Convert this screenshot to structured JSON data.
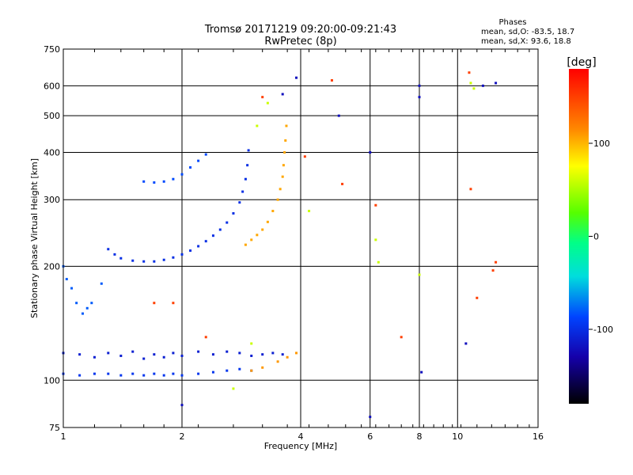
{
  "chart_data": {
    "type": "scatter",
    "title": "Tromsø 20171219 09:20:00-09:21:43",
    "subtitle": "RwPretec (8p)",
    "xlabel": "Frequency [MHz]",
    "ylabel": "Stationary phase Virtual Height [km]",
    "x_scale": "log",
    "y_scale": "log",
    "xlim": [
      1,
      16
    ],
    "ylim": [
      75,
      750
    ],
    "x_ticks": [
      1,
      2,
      4,
      6,
      8,
      10,
      16
    ],
    "y_ticks": [
      75,
      100,
      200,
      300,
      400,
      500,
      600,
      750
    ],
    "grid": true,
    "phase_box": {
      "title": "Phases",
      "line_o": "mean, sd,O: -83.5, 18.7",
      "line_x": "mean, sd,X:  93.6, 18.8"
    },
    "colorbar": {
      "label": "[deg]",
      "range": [
        -180,
        180
      ],
      "ticks": [
        100,
        0,
        -100
      ]
    },
    "series": [
      {
        "phase_deg": -95,
        "points": [
          [
            1.0,
            104
          ],
          [
            1.1,
            103
          ],
          [
            1.2,
            104
          ],
          [
            1.3,
            104
          ],
          [
            1.4,
            103
          ],
          [
            1.5,
            104
          ],
          [
            1.6,
            103
          ],
          [
            1.7,
            104
          ],
          [
            1.8,
            103
          ],
          [
            1.9,
            104
          ],
          [
            2.0,
            103
          ],
          [
            2.2,
            104
          ],
          [
            2.4,
            105
          ],
          [
            2.6,
            106
          ],
          [
            2.8,
            107
          ],
          [
            3.0,
            106
          ]
        ]
      },
      {
        "phase_deg": -110,
        "points": [
          [
            1.0,
            118
          ],
          [
            1.1,
            117
          ],
          [
            1.2,
            115
          ],
          [
            1.3,
            118
          ],
          [
            1.4,
            116
          ],
          [
            1.5,
            119
          ],
          [
            1.6,
            114
          ],
          [
            1.7,
            117
          ],
          [
            1.8,
            115
          ],
          [
            1.9,
            118
          ],
          [
            2.0,
            116
          ],
          [
            2.2,
            119
          ],
          [
            2.4,
            117
          ],
          [
            2.6,
            119
          ],
          [
            2.8,
            118
          ],
          [
            3.0,
            116
          ],
          [
            3.2,
            117
          ],
          [
            3.4,
            118
          ],
          [
            3.6,
            117
          ]
        ]
      },
      {
        "phase_deg": -80,
        "points": [
          [
            1.0,
            200
          ],
          [
            1.02,
            185
          ],
          [
            1.05,
            175
          ],
          [
            1.08,
            160
          ],
          [
            1.12,
            150
          ],
          [
            1.15,
            155
          ],
          [
            1.18,
            160
          ],
          [
            1.25,
            180
          ]
        ]
      },
      {
        "phase_deg": -100,
        "points": [
          [
            1.3,
            222
          ],
          [
            1.35,
            215
          ],
          [
            1.4,
            210
          ],
          [
            1.5,
            207
          ],
          [
            1.6,
            206
          ],
          [
            1.7,
            206
          ],
          [
            1.8,
            208
          ],
          [
            1.9,
            211
          ],
          [
            2.0,
            215
          ],
          [
            2.1,
            220
          ],
          [
            2.2,
            226
          ],
          [
            2.3,
            233
          ],
          [
            2.4,
            241
          ],
          [
            2.5,
            250
          ],
          [
            2.6,
            261
          ],
          [
            2.7,
            276
          ],
          [
            2.8,
            295
          ],
          [
            2.85,
            315
          ],
          [
            2.9,
            340
          ],
          [
            2.93,
            370
          ],
          [
            2.95,
            405
          ]
        ]
      },
      {
        "phase_deg": -85,
        "points": [
          [
            1.6,
            335
          ],
          [
            1.7,
            333
          ],
          [
            1.8,
            335
          ],
          [
            1.9,
            340
          ],
          [
            2.0,
            350
          ],
          [
            2.1,
            365
          ],
          [
            2.2,
            380
          ],
          [
            2.3,
            395
          ]
        ]
      },
      {
        "phase_deg": 105,
        "points": [
          [
            2.9,
            228
          ],
          [
            3.0,
            235
          ],
          [
            3.1,
            242
          ],
          [
            3.2,
            250
          ],
          [
            3.3,
            262
          ],
          [
            3.4,
            280
          ],
          [
            3.5,
            300
          ],
          [
            3.55,
            320
          ],
          [
            3.6,
            345
          ],
          [
            3.62,
            370
          ],
          [
            3.64,
            400
          ],
          [
            3.66,
            430
          ],
          [
            3.68,
            470
          ]
        ]
      },
      {
        "phase_deg": 110,
        "points": [
          [
            3.0,
            106
          ],
          [
            3.2,
            108
          ],
          [
            3.5,
            112
          ],
          [
            3.7,
            115
          ],
          [
            3.9,
            118
          ]
        ]
      },
      {
        "phase_deg": 60,
        "points": [
          [
            2.7,
            95
          ],
          [
            3.0,
            125
          ],
          [
            3.1,
            470
          ],
          [
            3.3,
            540
          ],
          [
            4.2,
            280
          ],
          [
            6.3,
            205
          ],
          [
            6.2,
            235
          ],
          [
            8.0,
            190
          ],
          [
            10.8,
            610
          ],
          [
            11.0,
            590
          ]
        ]
      },
      {
        "phase_deg": 150,
        "points": [
          [
            1.7,
            160
          ],
          [
            1.9,
            160
          ],
          [
            2.3,
            130
          ],
          [
            3.2,
            560
          ],
          [
            4.1,
            390
          ],
          [
            4.8,
            620
          ],
          [
            5.1,
            330
          ],
          [
            6.2,
            290
          ],
          [
            7.2,
            130
          ],
          [
            10.7,
            650
          ],
          [
            10.8,
            320
          ],
          [
            11.2,
            165
          ],
          [
            12.3,
            195
          ],
          [
            12.5,
            205
          ]
        ]
      },
      {
        "phase_deg": -120,
        "points": [
          [
            2.0,
            86
          ],
          [
            3.6,
            570
          ],
          [
            3.9,
            630
          ],
          [
            5.0,
            500
          ],
          [
            6.0,
            400
          ],
          [
            6.0,
            80
          ],
          [
            8.0,
            560
          ],
          [
            8.0,
            600
          ],
          [
            8.1,
            105
          ],
          [
            10.5,
            125
          ],
          [
            11.6,
            600
          ],
          [
            12.5,
            610
          ]
        ]
      }
    ]
  }
}
